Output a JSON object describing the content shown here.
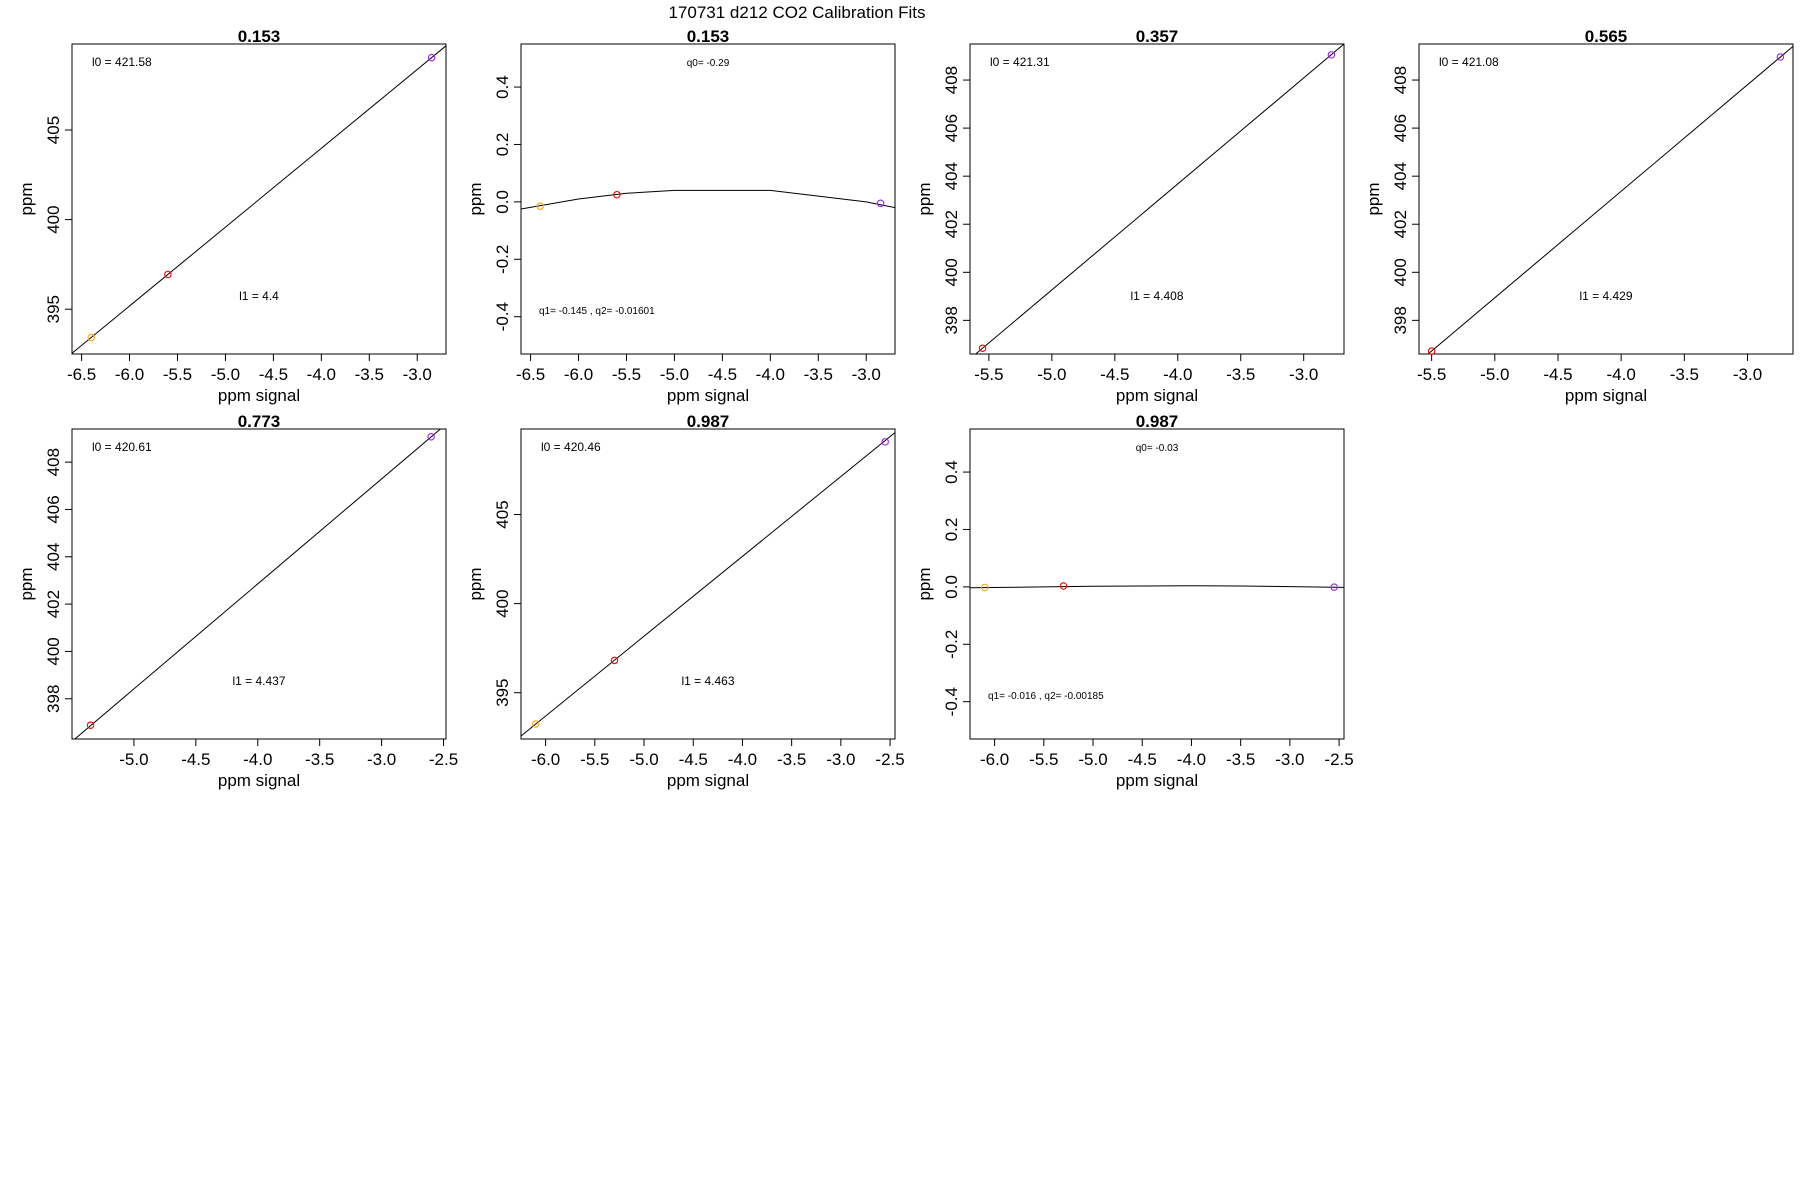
{
  "figure": {
    "title": "170731   d212   CO2 Calibration Fits"
  },
  "chart_data": [
    {
      "type": "scatter",
      "title": "0.153",
      "xlabel": "ppm signal",
      "ylabel": "ppm",
      "xlim": [
        -6.6,
        -2.7
      ],
      "ylim": [
        392.5,
        409.8
      ],
      "xticks": [
        "-6.5",
        "-6.0",
        "-5.5",
        "-5.0",
        "-4.5",
        "-4.0",
        "-3.5",
        "-3.0"
      ],
      "yticks": [
        "395",
        "400",
        "405"
      ],
      "fit": "linear",
      "fit_line": {
        "x": [
          -6.6,
          -2.7
        ],
        "y": [
          392.54,
          409.7
        ]
      },
      "points": [
        {
          "x": -6.4,
          "y": 393.42,
          "color": "#ffa500"
        },
        {
          "x": -5.6,
          "y": 396.94,
          "color": "#ff0000"
        },
        {
          "x": -2.85,
          "y": 409.04,
          "color": "#a020f0"
        }
      ],
      "annotations": {
        "top": "l0 =  421.58",
        "bottom": "l1 =  4.4"
      }
    },
    {
      "type": "scatter",
      "title": "0.153",
      "xlabel": "ppm signal",
      "ylabel": "ppm",
      "xlim": [
        -6.6,
        -2.7
      ],
      "ylim": [
        -0.53,
        0.55
      ],
      "xticks": [
        "-6.5",
        "-6.0",
        "-5.5",
        "-5.0",
        "-4.5",
        "-4.0",
        "-3.5",
        "-3.0"
      ],
      "yticks": [
        "-0.4",
        "-0.2",
        "0.0",
        "0.2",
        "0.4"
      ],
      "fit": "quadratic",
      "fit_line": {
        "x": [
          -6.6,
          -6.0,
          -5.5,
          -5.0,
          -4.5,
          -4.0,
          -3.5,
          -3.0,
          -2.7
        ],
        "y": [
          -0.025,
          0.01,
          0.03,
          0.04,
          0.04,
          0.04,
          0.02,
          0.0,
          -0.02
        ]
      },
      "points": [
        {
          "x": -6.4,
          "y": -0.015,
          "color": "#ffa500"
        },
        {
          "x": -5.6,
          "y": 0.025,
          "color": "#ff0000"
        },
        {
          "x": -2.85,
          "y": -0.005,
          "color": "#a020f0"
        }
      ],
      "annotations": {
        "top": "q0= -0.29",
        "bottom": "q1= -0.145 , q2= -0.01601"
      }
    },
    {
      "type": "scatter",
      "title": "0.357",
      "xlabel": "ppm signal",
      "ylabel": "ppm",
      "xlim": [
        -5.65,
        -2.68
      ],
      "ylim": [
        396.6,
        409.5
      ],
      "xticks": [
        "-5.5",
        "-5.0",
        "-4.5",
        "-4.0",
        "-3.5",
        "-3.0"
      ],
      "yticks": [
        "398",
        "400",
        "402",
        "404",
        "406",
        "408"
      ],
      "fit": "linear",
      "fit_line": {
        "x": [
          -5.65,
          -2.68
        ],
        "y": [
          396.4,
          409.5
        ]
      },
      "points": [
        {
          "x": -5.55,
          "y": 396.84,
          "color": "#ff0000"
        },
        {
          "x": -2.78,
          "y": 409.05,
          "color": "#a020f0"
        }
      ],
      "annotations": {
        "top": "l0 =  421.31",
        "bottom": "l1 =  4.408"
      }
    },
    {
      "type": "scatter",
      "title": "0.565",
      "xlabel": "ppm signal",
      "ylabel": "ppm",
      "xlim": [
        -5.6,
        -2.64
      ],
      "ylim": [
        396.6,
        409.5
      ],
      "xticks": [
        "-5.5",
        "-5.0",
        "-4.5",
        "-4.0",
        "-3.5",
        "-3.0"
      ],
      "yticks": [
        "398",
        "400",
        "402",
        "404",
        "406",
        "408"
      ],
      "fit": "linear",
      "fit_line": {
        "x": [
          -5.6,
          -2.64
        ],
        "y": [
          396.28,
          409.4
        ]
      },
      "points": [
        {
          "x": -5.5,
          "y": 396.72,
          "color": "#ff0000"
        },
        {
          "x": -2.74,
          "y": 408.96,
          "color": "#a020f0"
        }
      ],
      "annotations": {
        "top": "l0 =  421.08",
        "bottom": "l1 =  4.429"
      }
    },
    {
      "type": "scatter",
      "title": "0.773",
      "xlabel": "ppm signal",
      "ylabel": "ppm",
      "xlim": [
        -5.5,
        -2.48
      ],
      "ylim": [
        396.3,
        409.4
      ],
      "xticks": [
        "-5.0",
        "-4.5",
        "-4.0",
        "-3.5",
        "-3.0",
        "-2.5"
      ],
      "yticks": [
        "398",
        "400",
        "402",
        "404",
        "406",
        "408"
      ],
      "fit": "linear",
      "fit_line": {
        "x": [
          -5.5,
          -2.48
        ],
        "y": [
          396.2,
          409.6
        ]
      },
      "points": [
        {
          "x": -5.35,
          "y": 396.88,
          "color": "#ff0000"
        },
        {
          "x": -2.6,
          "y": 409.07,
          "color": "#a020f0"
        }
      ],
      "annotations": {
        "top": "l0 =  420.61",
        "bottom": "l1 =  4.437"
      }
    },
    {
      "type": "scatter",
      "title": "0.987",
      "xlabel": "ppm signal",
      "ylabel": "ppm",
      "xlim": [
        -6.25,
        -2.45
      ],
      "ylim": [
        392.4,
        409.8
      ],
      "xticks": [
        "-6.0",
        "-5.5",
        "-5.0",
        "-4.5",
        "-4.0",
        "-3.5",
        "-3.0",
        "-2.5"
      ],
      "yticks": [
        "395",
        "400",
        "405"
      ],
      "fit": "linear",
      "fit_line": {
        "x": [
          -6.25,
          -2.45
        ],
        "y": [
          392.57,
          409.6
        ]
      },
      "points": [
        {
          "x": -6.1,
          "y": 393.24,
          "color": "#ffa500"
        },
        {
          "x": -5.3,
          "y": 396.81,
          "color": "#ff0000"
        },
        {
          "x": -2.55,
          "y": 409.08,
          "color": "#a020f0"
        }
      ],
      "annotations": {
        "top": "l0 =  420.46",
        "bottom": "l1 =  4.463"
      }
    },
    {
      "type": "scatter",
      "title": "0.987",
      "xlabel": "ppm signal",
      "ylabel": "ppm",
      "xlim": [
        -6.25,
        -2.45
      ],
      "ylim": [
        -0.53,
        0.55
      ],
      "xticks": [
        "-6.0",
        "-5.5",
        "-5.0",
        "-4.5",
        "-4.0",
        "-3.5",
        "-3.0",
        "-2.5"
      ],
      "yticks": [
        "-0.4",
        "-0.2",
        "0.0",
        "0.2",
        "0.4"
      ],
      "fit": "quadratic",
      "fit_line": {
        "x": [
          -6.25,
          -5.5,
          -5.0,
          -4.5,
          -4.0,
          -3.5,
          -3.0,
          -2.45
        ],
        "y": [
          -0.003,
          0.0,
          0.002,
          0.003,
          0.004,
          0.003,
          0.001,
          -0.002
        ]
      },
      "points": [
        {
          "x": -6.1,
          "y": -0.002,
          "color": "#ffa500"
        },
        {
          "x": -5.3,
          "y": 0.003,
          "color": "#ff0000"
        },
        {
          "x": -2.55,
          "y": -0.001,
          "color": "#a020f0"
        }
      ],
      "annotations": {
        "top": "q0= -0.03",
        "bottom": "q1= -0.016 , q2= -0.00185"
      }
    }
  ]
}
